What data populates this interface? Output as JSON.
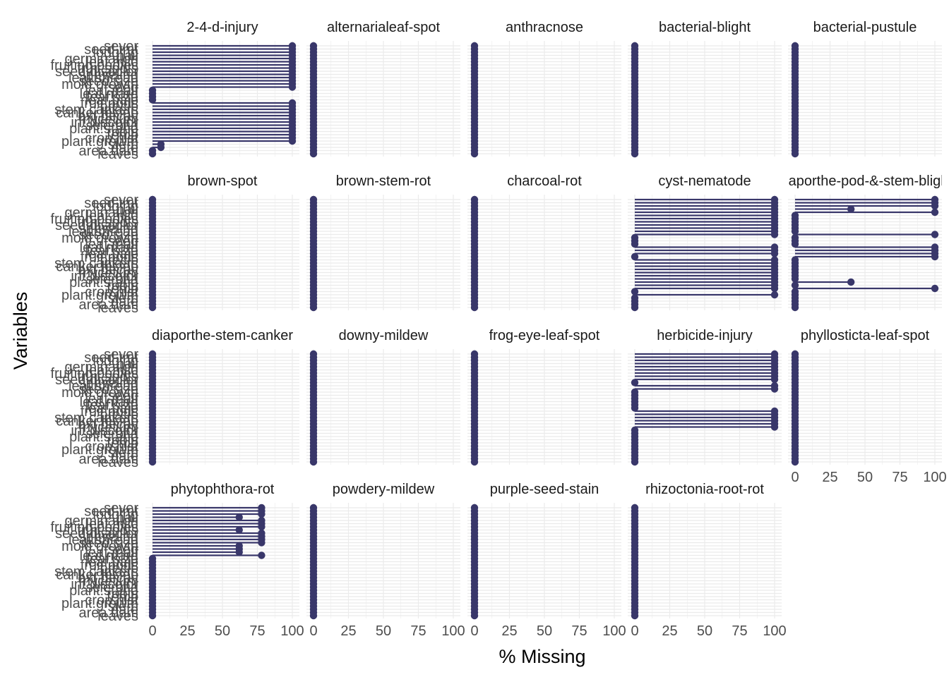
{
  "chart_data": {
    "type": "lollipop",
    "xlabel": "% Missing",
    "ylabel": "Variables",
    "xlim": [
      0,
      100
    ],
    "x_ticks": [
      0,
      25,
      50,
      75,
      100
    ],
    "grid": true,
    "colors": {
      "mark": "#39376a",
      "grid": "#ebebeb",
      "text": "#4d4d4d"
    },
    "variables": [
      "sever",
      "seed.tmt",
      "lodging",
      "hail",
      "germination",
      "leaf.mild",
      "fruiting.bodies",
      "fruit.spots",
      "seed.discolor",
      "shriveling",
      "leaf.shread",
      "seed.size",
      "mold.growth",
      "seed",
      "leaf.malf",
      "leaf.marg",
      "leaf.size",
      "leaf.halo",
      "fruit.pods",
      "precip",
      "stem.cankers",
      "canker.lesion",
      "ext.decay",
      "mycelium",
      "int.discolor",
      "sclerotia",
      "plant.stand",
      "roots",
      "temp",
      "crop.hist",
      "plant.growth",
      "stem",
      "date",
      "area.dam",
      "leaves"
    ],
    "panels": [
      {
        "name": "2-4-d-injury",
        "values": [
          100,
          100,
          100,
          100,
          100,
          100,
          100,
          100,
          100,
          100,
          100,
          100,
          100,
          100,
          0,
          0,
          0,
          0,
          100,
          100,
          100,
          100,
          100,
          100,
          100,
          100,
          100,
          100,
          100,
          100,
          100,
          6,
          6,
          0,
          0
        ]
      },
      {
        "name": "alternarialeaf-spot",
        "values": [
          0,
          0,
          0,
          0,
          0,
          0,
          0,
          0,
          0,
          0,
          0,
          0,
          0,
          0,
          0,
          0,
          0,
          0,
          0,
          0,
          0,
          0,
          0,
          0,
          0,
          0,
          0,
          0,
          0,
          0,
          0,
          0,
          0,
          0,
          0
        ]
      },
      {
        "name": "anthracnose",
        "values": [
          0,
          0,
          0,
          0,
          0,
          0,
          0,
          0,
          0,
          0,
          0,
          0,
          0,
          0,
          0,
          0,
          0,
          0,
          0,
          0,
          0,
          0,
          0,
          0,
          0,
          0,
          0,
          0,
          0,
          0,
          0,
          0,
          0,
          0,
          0
        ]
      },
      {
        "name": "bacterial-blight",
        "values": [
          0,
          0,
          0,
          0,
          0,
          0,
          0,
          0,
          0,
          0,
          0,
          0,
          0,
          0,
          0,
          0,
          0,
          0,
          0,
          0,
          0,
          0,
          0,
          0,
          0,
          0,
          0,
          0,
          0,
          0,
          0,
          0,
          0,
          0,
          0
        ]
      },
      {
        "name": "bacterial-pustule",
        "values": [
          0,
          0,
          0,
          0,
          0,
          0,
          0,
          0,
          0,
          0,
          0,
          0,
          0,
          0,
          0,
          0,
          0,
          0,
          0,
          0,
          0,
          0,
          0,
          0,
          0,
          0,
          0,
          0,
          0,
          0,
          0,
          0,
          0,
          0,
          0
        ]
      },
      {
        "name": "brown-spot",
        "values": [
          0,
          0,
          0,
          0,
          0,
          0,
          0,
          0,
          0,
          0,
          0,
          0,
          0,
          0,
          0,
          0,
          0,
          0,
          0,
          0,
          0,
          0,
          0,
          0,
          0,
          0,
          0,
          0,
          0,
          0,
          0,
          0,
          0,
          0,
          0
        ]
      },
      {
        "name": "brown-stem-rot",
        "values": [
          0,
          0,
          0,
          0,
          0,
          0,
          0,
          0,
          0,
          0,
          0,
          0,
          0,
          0,
          0,
          0,
          0,
          0,
          0,
          0,
          0,
          0,
          0,
          0,
          0,
          0,
          0,
          0,
          0,
          0,
          0,
          0,
          0,
          0,
          0
        ]
      },
      {
        "name": "charcoal-rot",
        "values": [
          0,
          0,
          0,
          0,
          0,
          0,
          0,
          0,
          0,
          0,
          0,
          0,
          0,
          0,
          0,
          0,
          0,
          0,
          0,
          0,
          0,
          0,
          0,
          0,
          0,
          0,
          0,
          0,
          0,
          0,
          0,
          0,
          0,
          0,
          0
        ]
      },
      {
        "name": "cyst-nematode",
        "values": [
          100,
          100,
          100,
          100,
          100,
          100,
          100,
          100,
          100,
          100,
          100,
          100,
          0,
          0,
          0,
          100,
          100,
          100,
          0,
          100,
          100,
          100,
          100,
          100,
          100,
          100,
          100,
          100,
          100,
          0,
          100,
          0,
          0,
          0,
          0
        ]
      },
      {
        "name": "diaporthe-pod-&-stem-blight",
        "values": [
          100,
          100,
          100,
          40,
          100,
          0,
          0,
          0,
          0,
          0,
          0,
          100,
          0,
          0,
          0,
          100,
          100,
          100,
          100,
          0,
          0,
          0,
          0,
          0,
          0,
          0,
          40,
          0,
          100,
          0,
          0,
          0,
          0,
          0,
          0
        ]
      },
      {
        "name": "diaporthe-stem-canker",
        "values": [
          0,
          0,
          0,
          0,
          0,
          0,
          0,
          0,
          0,
          0,
          0,
          0,
          0,
          0,
          0,
          0,
          0,
          0,
          0,
          0,
          0,
          0,
          0,
          0,
          0,
          0,
          0,
          0,
          0,
          0,
          0,
          0,
          0,
          0,
          0
        ]
      },
      {
        "name": "downy-mildew",
        "values": [
          0,
          0,
          0,
          0,
          0,
          0,
          0,
          0,
          0,
          0,
          0,
          0,
          0,
          0,
          0,
          0,
          0,
          0,
          0,
          0,
          0,
          0,
          0,
          0,
          0,
          0,
          0,
          0,
          0,
          0,
          0,
          0,
          0,
          0,
          0
        ]
      },
      {
        "name": "frog-eye-leaf-spot",
        "values": [
          0,
          0,
          0,
          0,
          0,
          0,
          0,
          0,
          0,
          0,
          0,
          0,
          0,
          0,
          0,
          0,
          0,
          0,
          0,
          0,
          0,
          0,
          0,
          0,
          0,
          0,
          0,
          0,
          0,
          0,
          0,
          0,
          0,
          0,
          0
        ]
      },
      {
        "name": "herbicide-injury",
        "values": [
          100,
          100,
          100,
          100,
          100,
          100,
          100,
          100,
          100,
          0,
          100,
          100,
          0,
          0,
          0,
          0,
          0,
          0,
          100,
          100,
          100,
          100,
          100,
          100,
          0,
          0,
          0,
          0,
          0,
          0,
          0,
          0,
          0,
          0,
          0
        ]
      },
      {
        "name": "phyllosticta-leaf-spot",
        "values": [
          0,
          0,
          0,
          0,
          0,
          0,
          0,
          0,
          0,
          0,
          0,
          0,
          0,
          0,
          0,
          0,
          0,
          0,
          0,
          0,
          0,
          0,
          0,
          0,
          0,
          0,
          0,
          0,
          0,
          0,
          0,
          0,
          0,
          0,
          0
        ]
      },
      {
        "name": "phytophthora-rot",
        "values": [
          78,
          78,
          78,
          62,
          78,
          78,
          78,
          62,
          78,
          78,
          78,
          78,
          62,
          62,
          62,
          78,
          0,
          0,
          0,
          0,
          0,
          0,
          0,
          0,
          0,
          0,
          0,
          0,
          0,
          0,
          0,
          0,
          0,
          0,
          0
        ]
      },
      {
        "name": "powdery-mildew",
        "values": [
          0,
          0,
          0,
          0,
          0,
          0,
          0,
          0,
          0,
          0,
          0,
          0,
          0,
          0,
          0,
          0,
          0,
          0,
          0,
          0,
          0,
          0,
          0,
          0,
          0,
          0,
          0,
          0,
          0,
          0,
          0,
          0,
          0,
          0,
          0
        ]
      },
      {
        "name": "purple-seed-stain",
        "values": [
          0,
          0,
          0,
          0,
          0,
          0,
          0,
          0,
          0,
          0,
          0,
          0,
          0,
          0,
          0,
          0,
          0,
          0,
          0,
          0,
          0,
          0,
          0,
          0,
          0,
          0,
          0,
          0,
          0,
          0,
          0,
          0,
          0,
          0,
          0
        ]
      },
      {
        "name": "rhizoctonia-root-rot",
        "values": [
          0,
          0,
          0,
          0,
          0,
          0,
          0,
          0,
          0,
          0,
          0,
          0,
          0,
          0,
          0,
          0,
          0,
          0,
          0,
          0,
          0,
          0,
          0,
          0,
          0,
          0,
          0,
          0,
          0,
          0,
          0,
          0,
          0,
          0,
          0
        ]
      }
    ]
  }
}
